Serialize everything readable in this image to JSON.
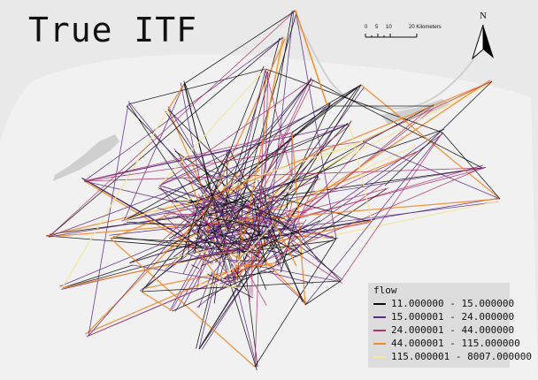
{
  "map": {
    "title": "True ITF",
    "scale_bar": {
      "labels": [
        "0",
        "5",
        "10",
        "20 Kilometers"
      ]
    },
    "north_arrow": {
      "label": "N",
      "icon": "north-arrow-icon"
    },
    "legend": {
      "title": "flow",
      "classes": [
        {
          "label": "11.000000 - 15.000000",
          "color": "#0b0b0b"
        },
        {
          "label": "15.000001 - 24.000000",
          "color": "#5b2a86"
        },
        {
          "label": "24.000001 - 44.000000",
          "color": "#b0356f"
        },
        {
          "label": "44.000001 - 115.000000",
          "color": "#f28a2d"
        },
        {
          "label": "115.000001 - 8007.000000",
          "color": "#f4e6a0"
        }
      ]
    },
    "colors": {
      "background": "#e9e9ea",
      "land": "#f4f4f4",
      "water": "#cfcfd0",
      "legend_bg": "#dcdcdc"
    }
  }
}
